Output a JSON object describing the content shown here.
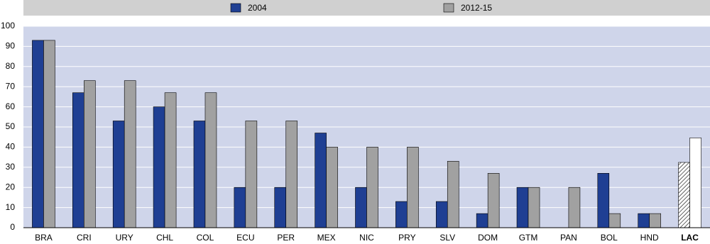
{
  "chart_data": {
    "type": "bar",
    "categories": [
      "BRA",
      "CRI",
      "URY",
      "CHL",
      "COL",
      "ECU",
      "PER",
      "MEX",
      "NIC",
      "PRY",
      "SLV",
      "DOM",
      "GTM",
      "PAN",
      "BOL",
      "HND",
      "LAC"
    ],
    "series": [
      {
        "name": "2004",
        "color": "#1f3f93",
        "highlight_fill": "hatch",
        "values": [
          93,
          67,
          53,
          60,
          53,
          20,
          20,
          47,
          20,
          13,
          13,
          7,
          20,
          null,
          27,
          7,
          32.4
        ]
      },
      {
        "name": "2012-15",
        "color": "#a1a1a1",
        "highlight_fill": "#ffffff",
        "values": [
          93,
          73,
          73,
          67,
          67,
          53,
          53,
          40,
          40,
          40,
          33,
          27,
          20,
          20,
          7,
          7,
          44.6
        ]
      }
    ],
    "highlight_categories": [
      "LAC"
    ],
    "ylim": [
      0,
      100
    ],
    "yticks": [
      0,
      10,
      20,
      30,
      40,
      50,
      60,
      70,
      80,
      90,
      100
    ],
    "grid": true,
    "legend": "top"
  }
}
